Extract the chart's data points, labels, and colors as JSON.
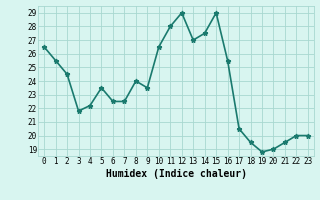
{
  "x": [
    0,
    1,
    2,
    3,
    4,
    5,
    6,
    7,
    8,
    9,
    10,
    11,
    12,
    13,
    14,
    15,
    16,
    17,
    18,
    19,
    20,
    21,
    22,
    23
  ],
  "y": [
    26.5,
    25.5,
    24.5,
    21.8,
    22.2,
    23.5,
    22.5,
    22.5,
    24.0,
    23.5,
    26.5,
    28.0,
    29.0,
    27.0,
    27.5,
    29.0,
    25.5,
    20.5,
    19.5,
    18.8,
    19.0,
    19.5,
    20.0,
    20.0
  ],
  "line_color": "#1a7a6e",
  "marker": "*",
  "marker_size": 3.5,
  "background_color": "#d8f5f0",
  "grid_color": "#a8d8d0",
  "xlabel": "Humidex (Indice chaleur)",
  "xlim": [
    -0.5,
    23.5
  ],
  "ylim": [
    18.5,
    29.5
  ],
  "yticks": [
    19,
    20,
    21,
    22,
    23,
    24,
    25,
    26,
    27,
    28,
    29
  ],
  "xticks": [
    0,
    1,
    2,
    3,
    4,
    5,
    6,
    7,
    8,
    9,
    10,
    11,
    12,
    13,
    14,
    15,
    16,
    17,
    18,
    19,
    20,
    21,
    22,
    23
  ],
  "tick_fontsize": 5.5,
  "xlabel_fontsize": 7,
  "line_width": 1.2
}
